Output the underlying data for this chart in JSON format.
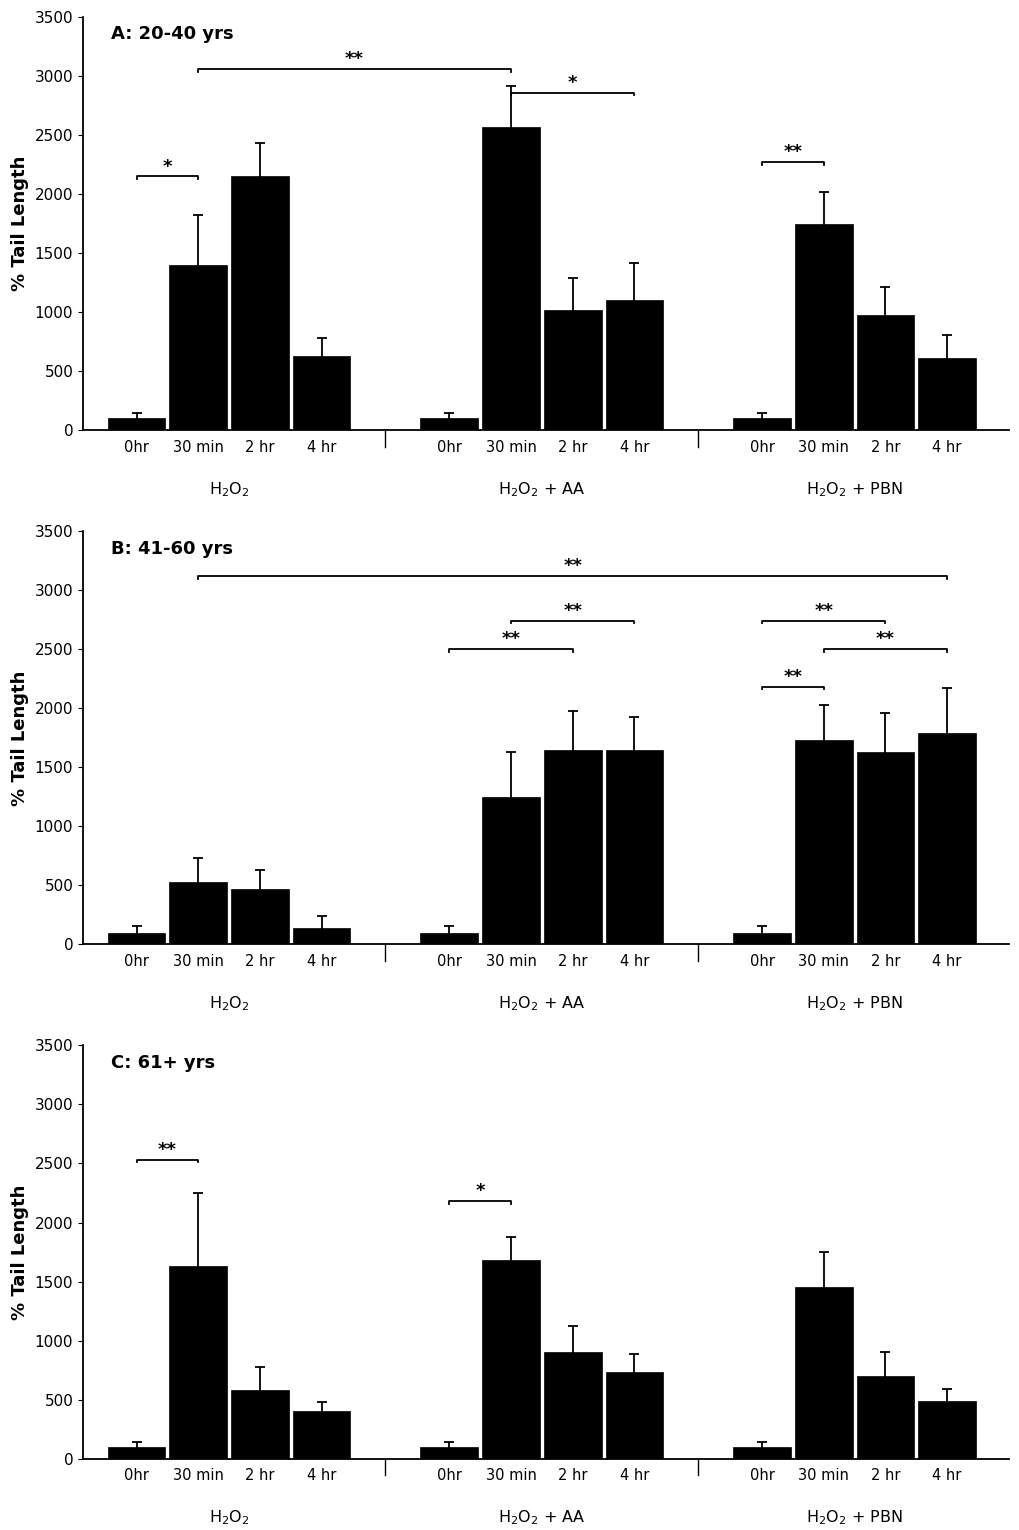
{
  "panels": [
    {
      "title": "A: 20-40 yrs",
      "values": [
        [
          100,
          1400,
          2150,
          630
        ],
        [
          100,
          2570,
          1020,
          1100
        ],
        [
          100,
          1750,
          980,
          610
        ]
      ],
      "errors": [
        [
          50,
          420,
          280,
          150
        ],
        [
          50,
          350,
          270,
          320
        ],
        [
          50,
          270,
          230,
          200
        ]
      ]
    },
    {
      "title": "B: 41-60 yrs",
      "values": [
        [
          100,
          530,
          470,
          140
        ],
        [
          100,
          1250,
          1650,
          1650
        ],
        [
          100,
          1730,
          1630,
          1790
        ]
      ],
      "errors": [
        [
          60,
          200,
          160,
          100
        ],
        [
          60,
          380,
          330,
          280
        ],
        [
          60,
          300,
          330,
          380
        ]
      ]
    },
    {
      "title": "C: 61+ yrs",
      "values": [
        [
          100,
          1630,
          580,
          400
        ],
        [
          100,
          1680,
          900,
          730
        ],
        [
          100,
          1450,
          700,
          490
        ]
      ],
      "errors": [
        [
          40,
          620,
          200,
          80
        ],
        [
          40,
          200,
          220,
          160
        ],
        [
          40,
          300,
          200,
          100
        ]
      ]
    }
  ],
  "timepoints": [
    "0hr",
    "30 min",
    "2 hr",
    "4 hr"
  ],
  "group_labels": [
    "H$_2$O$_2$",
    "H$_2$O$_2$ + AA",
    "H$_2$O$_2$ + PBN"
  ],
  "bar_color": "#000000",
  "ylim": [
    0,
    3500
  ],
  "yticks": [
    0,
    500,
    1000,
    1500,
    2000,
    2500,
    3000,
    3500
  ],
  "ylabel": "% Tail Length",
  "background_color": "#ffffff"
}
